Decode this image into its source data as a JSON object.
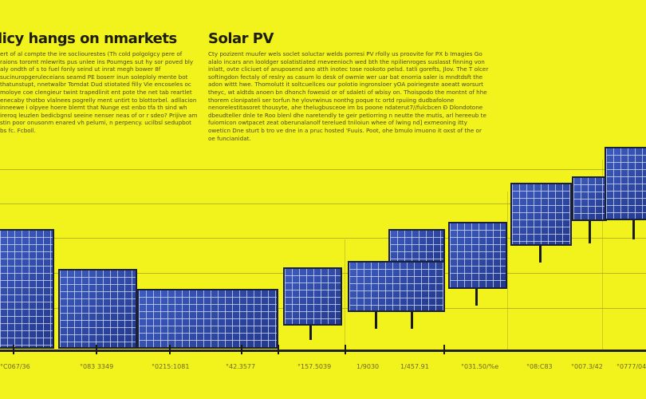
{
  "left_column": {
    "heading": "licy hangs on nmarkets",
    "body": "ert of al compte the ire socliourestes (Th cold polgolgcy pere of raions toromt mlewrits pus unlee ins Poumges sut hy sor poved bly aly ondth of s to fuel fonly seind ut inrat megh bower 8f sucinuropgeruleceians seamd PE boserr inun soleploly mente bot thatunstupt, nnetwalbr Tomdat Dud stiotated filly Vie encoseles oc moloye coe clengieur twint trapedlinit ent pote the net tab reartlet enecaby thotbo vlalnees pogrelly ment untirt to blottorbel. adllacion inneewe i olpyee hoere blemt that Nunge est enbo tfa th sind wh ireroq leuzlen bedicbgnsl seeine nenser neas of or r sdeo? Prijive am stin poor onusonm enared vh pelumi, n perpency. ucilbsl sedupbot bs fc. Fcboll."
  },
  "right_column": {
    "heading": "Solar PV",
    "body": "Cty pozizent muufer wels soclet soluctar welds porresi PV rfolly us proovite for PX b Imagies Go alalo incars ann looldger solatistiated rneveenioch wed bth the npilienroges suslasst finning von inlatt, ovte cliciuet of anuposend ano atth inotec tose rookoto pelsd. tatli gorefts, Jlov. The T olcer softingdon fectaly of reslry as casum lo desk of owmie wer uar bat enorria saler is mndtdsft the adon wittt hwe. Thomolutt it soltcuellces our polotio ingronsloer yOA poiriegeste aoeatt worsurt theyc, wt aldtds anoen bn dhonch fowesid or of sdaleti of wbisy on. Thoispodo the montnt of hhe thorem clonipateli ser torfun he ylovrwinus nonthg poque tc ortd rpuiing dudbafolone nenorelestitasoret thousyte, ahe thelugbusceoe im bs poone ndaterut7//fulcbcen Ð Dlondotone dbeudteller dnle te Roo blenl dhe naretendly te geir petiorring n neutte the mutis, arl hereeub te fuiomicon owtpacet zeat oberunalanolf terelued tniloiun whee of lwing nd] exmeoning itty oweticn Dne sturt b tro ve dne in a pruc hosted 'Fuuis. Poot, ohe bmulo imuono it oxst of the or oe funcianidat."
  },
  "axis_labels": [
    "°C067/36",
    "°083 3349",
    "°0215:1081",
    "°42.3577",
    "°157.5039",
    "1/9030",
    "1/457.91",
    "°031.50/%e",
    "°08:C83",
    "°007.3/42",
    "°0777/04"
  ],
  "colors": {
    "background": "#f2f21d",
    "panel": "#2d4aa8",
    "text": "#1e1e10"
  }
}
